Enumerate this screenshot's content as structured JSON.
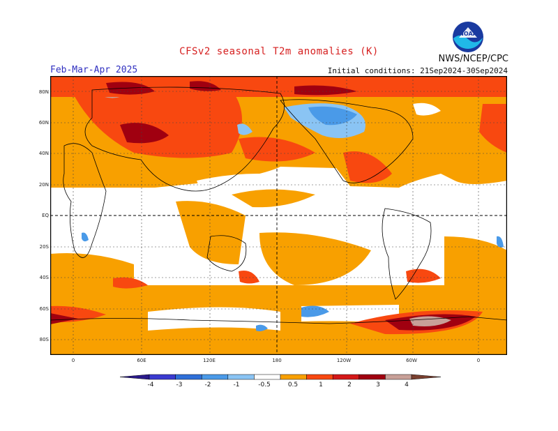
{
  "header": {
    "title": "CFSv2 seasonal T2m anomalies (K)",
    "agency": "NWS/NCEP/CPC",
    "period": "Feb-Mar-Apr 2025",
    "initial_conditions": "Initial conditions: 21Sep2024-30Sep2024"
  },
  "logo": {
    "icon": "noaa-logo-icon",
    "text": "NOAA"
  },
  "map": {
    "lat_labels": [
      "80N",
      "60N",
      "40N",
      "20N",
      "EQ",
      "20S",
      "40S",
      "60S",
      "80S"
    ],
    "lon_labels": [
      "0",
      "60E",
      "120E",
      "180",
      "120W",
      "60W",
      "0"
    ]
  },
  "colorbar": {
    "labels": [
      "-4",
      "-3",
      "-2",
      "-1",
      "-0.5",
      "0.5",
      "1",
      "2",
      "3",
      "4"
    ],
    "colors": [
      "#2a1a8a",
      "#3a3ad0",
      "#2f6fd8",
      "#4a9ae8",
      "#8ac4f4",
      "#ffffff",
      "#f8a000",
      "#f84810",
      "#d41818",
      "#a00010",
      "#c8a098",
      "#7a4030"
    ]
  }
}
